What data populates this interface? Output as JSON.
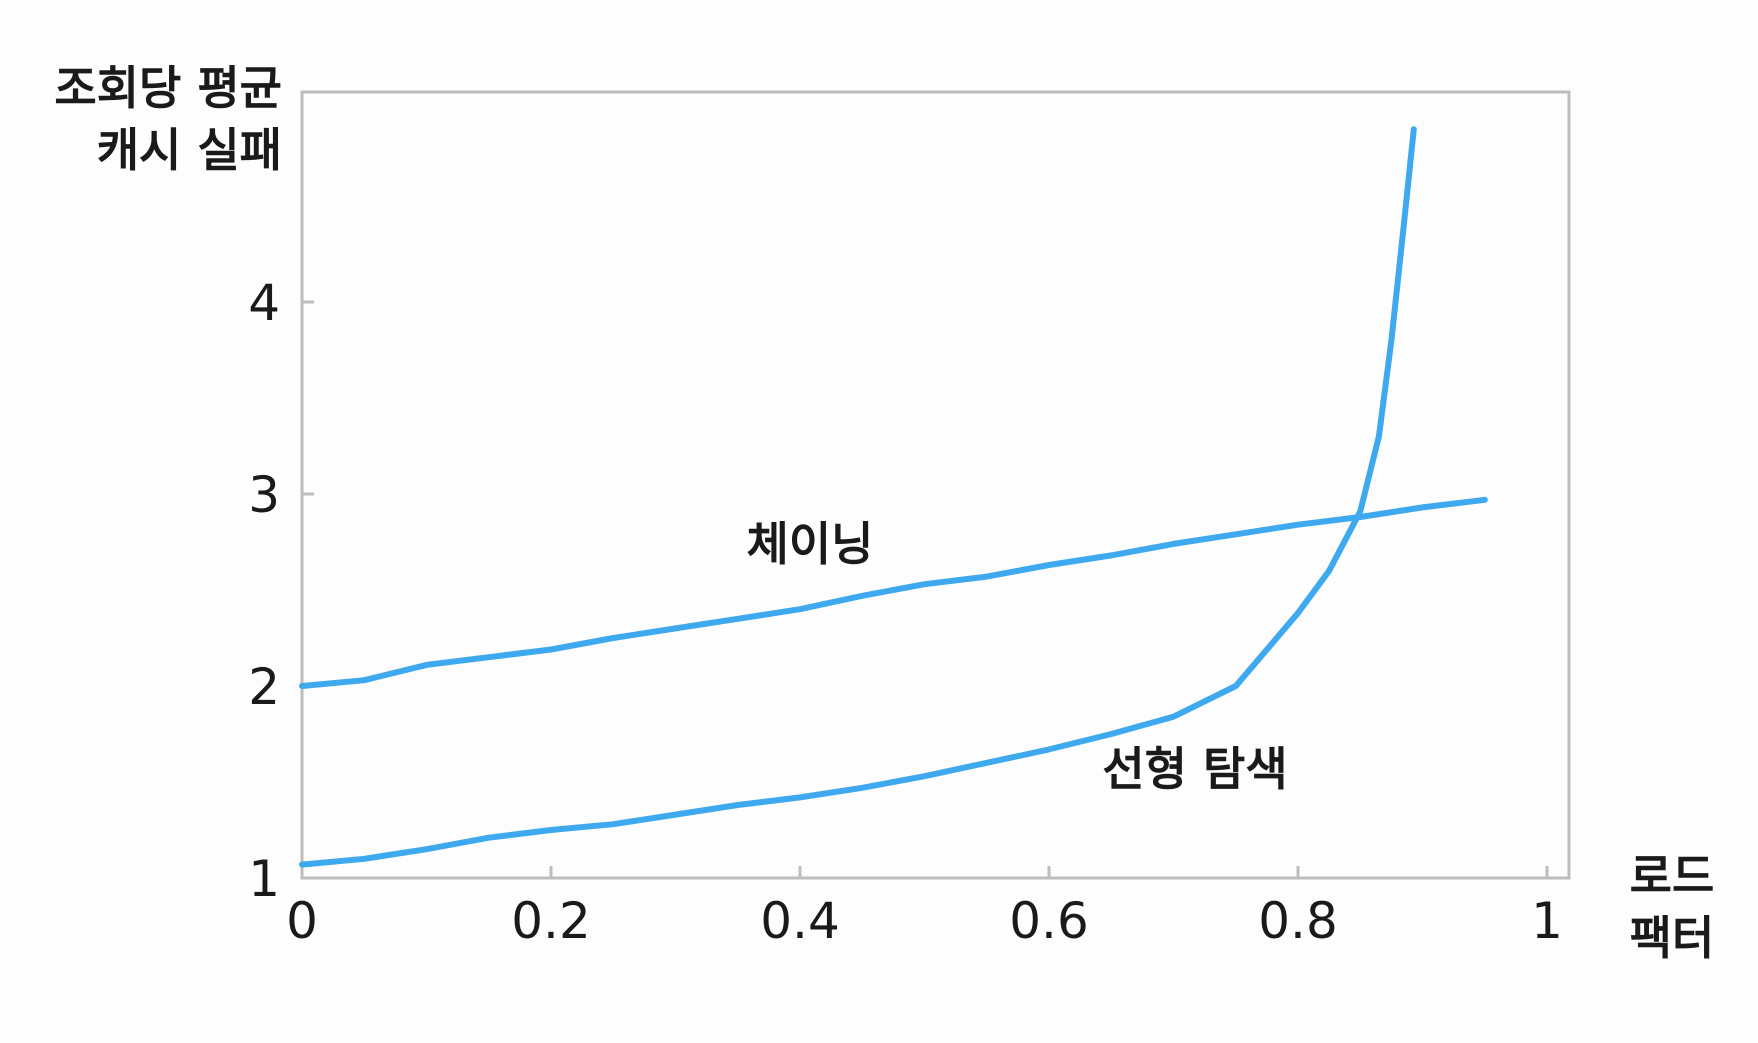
{
  "chart_data": {
    "type": "line",
    "title": "",
    "ylabel_lines": [
      "조회당 평균",
      "캐시 실패"
    ],
    "xlabel_lines": [
      "로드",
      "팩터"
    ],
    "xlim": [
      0,
      1
    ],
    "ylim": [
      1,
      5
    ],
    "x_ticks": [
      {
        "value": 0,
        "label": "0"
      },
      {
        "value": 0.2,
        "label": "0.2"
      },
      {
        "value": 0.4,
        "label": "0.4"
      },
      {
        "value": 0.6,
        "label": "0.6"
      },
      {
        "value": 0.8,
        "label": "0.8"
      },
      {
        "value": 1,
        "label": "1"
      }
    ],
    "y_ticks": [
      {
        "value": 1,
        "label": "1"
      },
      {
        "value": 2,
        "label": "2"
      },
      {
        "value": 3,
        "label": "3"
      },
      {
        "value": 4,
        "label": "4"
      }
    ],
    "grid": false,
    "line_color": "#3fa9f0",
    "axis_color": "#bdbdbd",
    "series": [
      {
        "name": "체이닝",
        "points": [
          [
            0.0,
            2.0
          ],
          [
            0.05,
            2.03
          ],
          [
            0.1,
            2.11
          ],
          [
            0.15,
            2.15
          ],
          [
            0.2,
            2.19
          ],
          [
            0.25,
            2.25
          ],
          [
            0.3,
            2.3
          ],
          [
            0.35,
            2.35
          ],
          [
            0.4,
            2.4
          ],
          [
            0.45,
            2.47
          ],
          [
            0.5,
            2.53
          ],
          [
            0.55,
            2.57
          ],
          [
            0.6,
            2.63
          ],
          [
            0.65,
            2.68
          ],
          [
            0.7,
            2.74
          ],
          [
            0.75,
            2.79
          ],
          [
            0.8,
            2.84
          ],
          [
            0.85,
            2.88
          ],
          [
            0.9,
            2.93
          ],
          [
            0.95,
            2.97
          ]
        ]
      },
      {
        "name": "선형 탐색",
        "points": [
          [
            0.0,
            1.07
          ],
          [
            0.05,
            1.1
          ],
          [
            0.1,
            1.15
          ],
          [
            0.15,
            1.21
          ],
          [
            0.2,
            1.25
          ],
          [
            0.25,
            1.28
          ],
          [
            0.3,
            1.33
          ],
          [
            0.35,
            1.38
          ],
          [
            0.4,
            1.42
          ],
          [
            0.45,
            1.47
          ],
          [
            0.5,
            1.53
          ],
          [
            0.55,
            1.6
          ],
          [
            0.6,
            1.67
          ],
          [
            0.65,
            1.75
          ],
          [
            0.7,
            1.84
          ],
          [
            0.75,
            2.0
          ],
          [
            0.8,
            2.38
          ],
          [
            0.825,
            2.6
          ],
          [
            0.85,
            2.91
          ],
          [
            0.865,
            3.3
          ],
          [
            0.875,
            3.8
          ],
          [
            0.885,
            4.4
          ],
          [
            0.893,
            4.9
          ]
        ]
      }
    ]
  }
}
